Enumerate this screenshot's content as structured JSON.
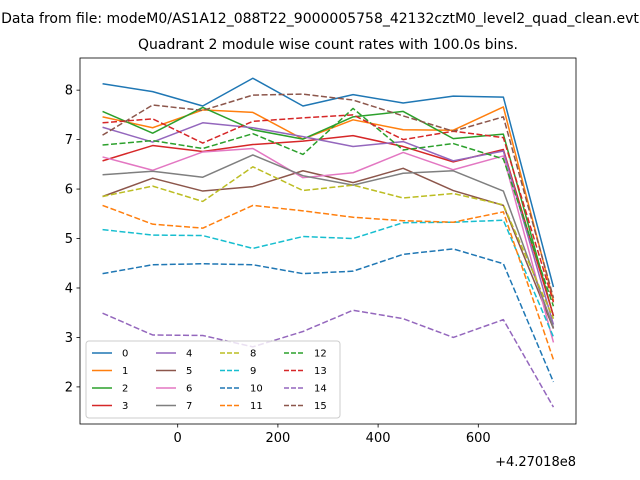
{
  "figure": {
    "suptitle": "Data from file: modeM0/AS1A12_088T22_9000005758_42132cztM0_level2_quad_clean.evt",
    "title": "Quadrant 2 module wise count rates with 100.0s bins."
  },
  "chart_data": {
    "type": "line",
    "title": "Quadrant 2 module wise count rates with 100.0s bins.",
    "xlabel": "",
    "ylabel": "",
    "x_offset_label": "+4.27018e8",
    "x": [
      -150,
      -50,
      50,
      150,
      250,
      350,
      450,
      550,
      650,
      750
    ],
    "xlim": [
      -195,
      795
    ],
    "ylim": [
      1.25,
      8.65
    ],
    "xticks": [
      0,
      200,
      400,
      600
    ],
    "yticks": [
      2,
      3,
      4,
      5,
      6,
      7,
      8
    ],
    "grid": false,
    "legend_position": "lower-left",
    "legend_columns": 4,
    "series": [
      {
        "name": "0",
        "color": "#1f77b4",
        "dash": "solid",
        "values": [
          8.13,
          7.97,
          7.68,
          8.24,
          7.68,
          7.91,
          7.74,
          7.88,
          7.86,
          4.02
        ]
      },
      {
        "name": "1",
        "color": "#ff7f0e",
        "dash": "solid",
        "values": [
          7.46,
          7.24,
          7.6,
          7.55,
          7.01,
          7.4,
          7.2,
          7.19,
          7.66,
          3.74
        ]
      },
      {
        "name": "2",
        "color": "#2ca02c",
        "dash": "solid",
        "values": [
          7.57,
          7.13,
          7.65,
          7.2,
          7.01,
          7.46,
          7.57,
          7.02,
          7.11,
          3.43
        ]
      },
      {
        "name": "3",
        "color": "#d62728",
        "dash": "solid",
        "values": [
          6.57,
          6.88,
          6.76,
          6.9,
          6.97,
          7.08,
          6.86,
          6.55,
          6.8,
          3.44
        ]
      },
      {
        "name": "4",
        "color": "#9467bd",
        "dash": "solid",
        "values": [
          7.25,
          6.95,
          7.34,
          7.24,
          7.06,
          6.86,
          6.96,
          6.57,
          6.77,
          3.26
        ]
      },
      {
        "name": "5",
        "color": "#8c564b",
        "dash": "solid",
        "values": [
          5.85,
          6.22,
          5.96,
          6.05,
          6.37,
          6.13,
          6.42,
          5.97,
          5.67,
          3.18
        ]
      },
      {
        "name": "6",
        "color": "#e377c2",
        "dash": "solid",
        "values": [
          6.65,
          6.38,
          6.75,
          6.82,
          6.23,
          6.33,
          6.74,
          6.39,
          6.67,
          2.9
        ]
      },
      {
        "name": "7",
        "color": "#7f7f7f",
        "dash": "solid",
        "values": [
          6.29,
          6.36,
          6.24,
          6.69,
          6.27,
          6.08,
          6.32,
          6.37,
          5.96,
          3.2
        ]
      },
      {
        "name": "8",
        "color": "#bcbd22",
        "dash": "dashed",
        "values": [
          5.85,
          6.06,
          5.75,
          6.45,
          5.97,
          6.08,
          5.82,
          5.91,
          5.68,
          3.38
        ]
      },
      {
        "name": "9",
        "color": "#17becf",
        "dash": "dashed",
        "values": [
          5.18,
          5.07,
          5.06,
          4.8,
          5.04,
          5.0,
          5.32,
          5.33,
          5.37,
          3.01
        ]
      },
      {
        "name": "10",
        "color": "#1f77b4",
        "dash": "dashed",
        "values": [
          4.29,
          4.47,
          4.49,
          4.47,
          4.29,
          4.34,
          4.68,
          4.79,
          4.49,
          2.1
        ]
      },
      {
        "name": "11",
        "color": "#ff7f0e",
        "dash": "dashed",
        "values": [
          5.67,
          5.29,
          5.21,
          5.67,
          5.56,
          5.43,
          5.36,
          5.33,
          5.54,
          2.55
        ]
      },
      {
        "name": "12",
        "color": "#2ca02c",
        "dash": "dashed",
        "values": [
          6.89,
          6.98,
          6.82,
          7.12,
          6.7,
          7.63,
          6.79,
          6.92,
          6.61,
          3.63
        ]
      },
      {
        "name": "13",
        "color": "#d62728",
        "dash": "dashed",
        "values": [
          7.34,
          7.42,
          6.93,
          7.37,
          7.44,
          7.5,
          7.0,
          7.17,
          7.04,
          3.71
        ]
      },
      {
        "name": "14",
        "color": "#9467bd",
        "dash": "dashed",
        "values": [
          3.49,
          3.05,
          3.04,
          2.81,
          3.12,
          3.55,
          3.38,
          3.0,
          3.36,
          1.59
        ]
      },
      {
        "name": "15",
        "color": "#8c564b",
        "dash": "dashed",
        "values": [
          7.09,
          7.7,
          7.59,
          7.9,
          7.92,
          7.8,
          7.48,
          7.17,
          7.46,
          3.8
        ]
      }
    ]
  }
}
